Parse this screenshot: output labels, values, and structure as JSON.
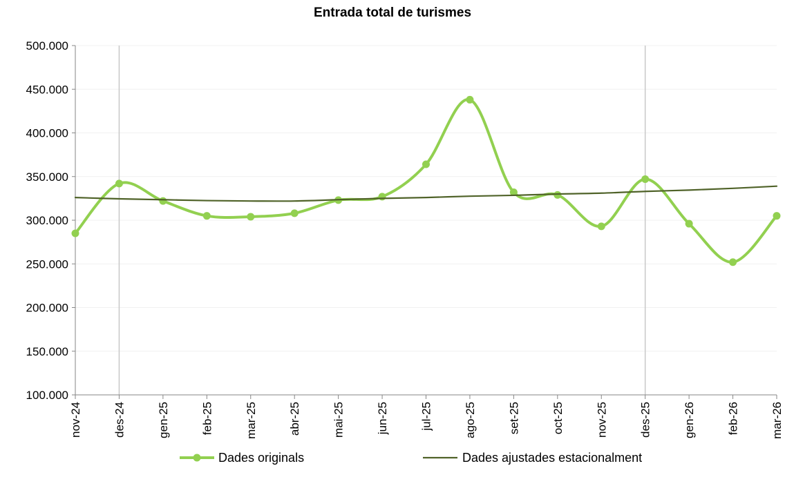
{
  "chart_data": {
    "type": "line",
    "title": "Entrada total de turismes",
    "xlabel": "",
    "ylabel": "",
    "categories": [
      "nov-24",
      "des-24",
      "gen-25",
      "feb-25",
      "mar-25",
      "abr-25",
      "mai-25",
      "jun-25",
      "jul-25",
      "ago-25",
      "set-25",
      "oct-25",
      "nov-25",
      "des-25",
      "gen-26",
      "feb-26",
      "mar-26"
    ],
    "ylim": [
      100000,
      500000
    ],
    "yticks": [
      100000,
      150000,
      200000,
      250000,
      300000,
      350000,
      400000,
      450000,
      500000
    ],
    "ytick_labels": [
      "100.000",
      "150.000",
      "200.000",
      "250.000",
      "300.000",
      "350.000",
      "400.000",
      "450.000",
      "500.000"
    ],
    "year_marker_categories": [
      "des-24",
      "des-25"
    ],
    "grid": "horizontal",
    "legend_position": "bottom",
    "series": [
      {
        "name": "Dades originals",
        "color": "#92d050",
        "markers": true,
        "smooth": true,
        "values": [
          285000,
          342000,
          322000,
          305000,
          304000,
          308000,
          323000,
          327000,
          364000,
          438000,
          332000,
          329000,
          293000,
          347000,
          296000,
          252000,
          305000
        ]
      },
      {
        "name": "Dades ajustades estacionalment",
        "color": "#4f6228",
        "markers": false,
        "smooth": true,
        "values": [
          326000,
          324500,
          323500,
          322500,
          322000,
          322000,
          323500,
          325000,
          326000,
          327500,
          328500,
          330000,
          331000,
          333000,
          334500,
          336500,
          339000
        ]
      }
    ]
  }
}
